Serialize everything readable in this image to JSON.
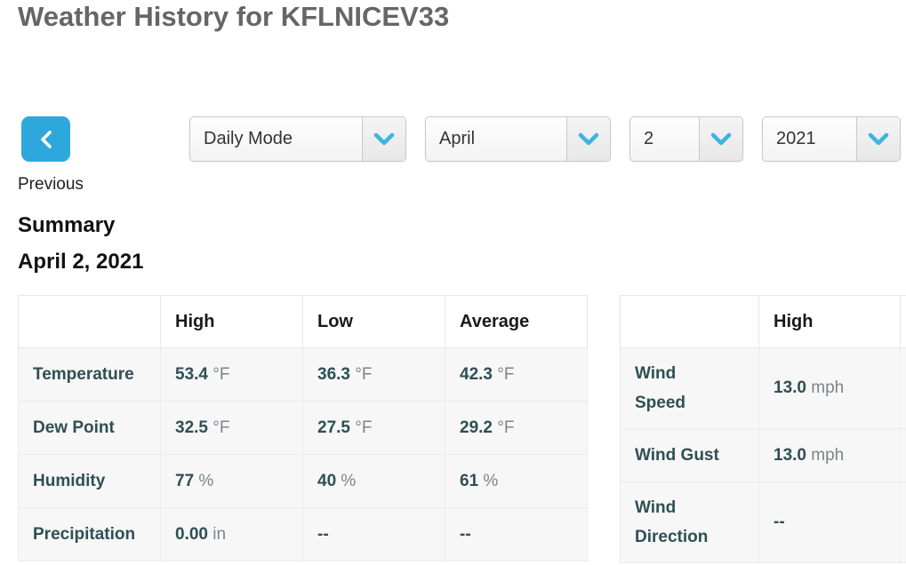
{
  "page": {
    "title": "Weather History for KFLNICEV33"
  },
  "controls": {
    "previous": {
      "label": "Previous",
      "icon": "chevron-left-icon"
    },
    "selects": [
      {
        "name": "mode",
        "value": "Daily Mode"
      },
      {
        "name": "month",
        "value": "April"
      },
      {
        "name": "day",
        "value": "2"
      },
      {
        "name": "year",
        "value": "2021"
      }
    ]
  },
  "summary": {
    "heading": "Summary",
    "date": "April 2, 2021"
  },
  "summary_table": {
    "columns": [
      "",
      "High",
      "Low",
      "Average"
    ],
    "rows": [
      {
        "label": "Temperature",
        "tall": false,
        "cells": [
          {
            "value": "53.4",
            "unit": "°F"
          },
          {
            "value": "36.3",
            "unit": "°F"
          },
          {
            "value": "42.3",
            "unit": "°F"
          }
        ]
      },
      {
        "label": "Dew Point",
        "tall": false,
        "cells": [
          {
            "value": "32.5",
            "unit": "°F"
          },
          {
            "value": "27.5",
            "unit": "°F"
          },
          {
            "value": "29.2",
            "unit": "°F"
          }
        ]
      },
      {
        "label": "Humidity",
        "tall": false,
        "cells": [
          {
            "value": "77",
            "unit": "%"
          },
          {
            "value": "40",
            "unit": "%"
          },
          {
            "value": "61",
            "unit": "%"
          }
        ]
      },
      {
        "label": "Precipitation",
        "tall": false,
        "cells": [
          {
            "value": "0.00",
            "unit": "in"
          },
          {
            "value": "--",
            "unit": ""
          },
          {
            "value": "--",
            "unit": ""
          }
        ]
      }
    ]
  },
  "wind_table": {
    "columns": [
      "",
      "High"
    ],
    "rows": [
      {
        "label": "Wind Speed",
        "tall": true,
        "cells": [
          {
            "value": "13.0",
            "unit": "mph"
          }
        ]
      },
      {
        "label": "Wind Gust",
        "tall": false,
        "cells": [
          {
            "value": "13.0",
            "unit": "mph"
          }
        ]
      },
      {
        "label": "Wind Direction",
        "tall": true,
        "cells": [
          {
            "value": "--",
            "unit": ""
          }
        ]
      }
    ]
  },
  "colors": {
    "accent_blue": "#2ea8dc",
    "chevron_cyan": "#3db4e3",
    "value_text": "#2f4f55",
    "unit_text": "#7b8589",
    "row_bg": "#f7f7f7",
    "border": "#e7e7e7",
    "title_gray": "#666666"
  }
}
